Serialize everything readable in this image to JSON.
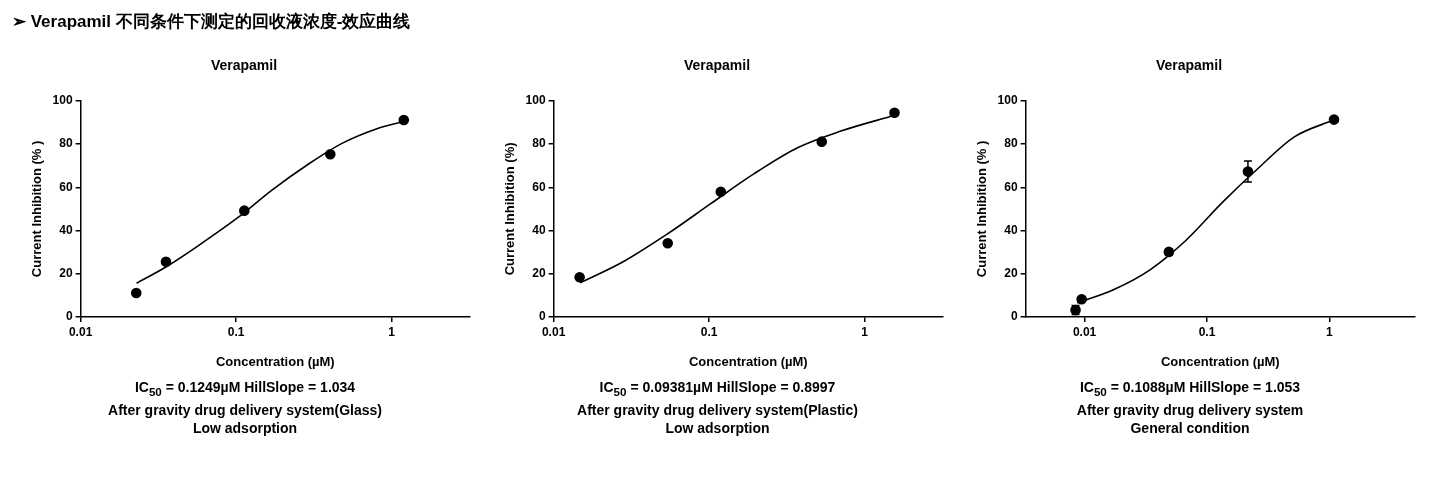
{
  "chart_data": [
    {
      "type": "other",
      "title": "➢ Verapamil 不同条件下测定的回收液浓度-效应曲线"
    },
    {
      "type": "scatter",
      "title": "Verapamil",
      "xlabel": "Concentration (µM)",
      "ylabel": "Current Inhibition (% )",
      "log": "x",
      "xlim": [
        0.01,
        3.2
      ],
      "xticks": [
        0.01,
        0.1,
        1
      ],
      "ylim": [
        0,
        100
      ],
      "yticks": [
        0,
        20,
        40,
        60,
        80,
        100
      ],
      "annotations": [
        "IC$_{50}$ = 0.1249µM HillSlope = 1.034",
        "After gravity drug delivery system(Glass)",
        "Low adsorption"
      ],
      "series": [
        {
          "type": "line",
          "color": "#000000",
          "marker": "none",
          "x": [
            0.0229,
            0.0365,
            0.061,
            0.102,
            0.171,
            0.285,
            0.477,
            0.798,
            1.2
          ],
          "values": [
            15.6,
            23.7,
            34.4,
            45.8,
            58.8,
            70.2,
            80.2,
            87.0,
            90.4
          ]
        },
        {
          "type": "scatter",
          "color": "#000000",
          "marker": "circle",
          "x": [
            0.0228,
            0.0354,
            0.113,
            0.404,
            1.2
          ],
          "values": [
            11.1,
            25.5,
            49.2,
            75.3,
            91.1
          ]
        }
      ]
    },
    {
      "type": "scatter",
      "title": "Verapamil",
      "xlabel": "Concentration (µM)",
      "ylabel": "Current Inhibition (%)",
      "log": "x",
      "xlim": [
        0.01,
        3.2
      ],
      "xticks": [
        0.01,
        0.1,
        1
      ],
      "ylim": [
        0,
        100
      ],
      "yticks": [
        0,
        20,
        40,
        60,
        80,
        100
      ],
      "annotations": [
        "IC$_{50}$ = 0.09381µM HillSlope = 0.8997",
        "After gravity drug delivery system(Plastic)",
        "Low adsorption"
      ],
      "series": [
        {
          "type": "line",
          "color": "#000000",
          "marker": "none",
          "x": [
            0.0148,
            0.0282,
            0.0537,
            0.102,
            0.195,
            0.371,
            0.705,
            1.56
          ],
          "values": [
            15.8,
            25.7,
            38.3,
            52.3,
            66.3,
            78.3,
            86.0,
            93.3
          ]
        },
        {
          "type": "scatter",
          "color": "#000000",
          "marker": "circle",
          "x": [
            0.0147,
            0.0542,
            0.119,
            0.531,
            1.56
          ],
          "values": [
            18.4,
            34.1,
            57.9,
            81.1,
            94.5
          ]
        }
      ]
    },
    {
      "type": "scatter",
      "title": "Verapamil",
      "xlabel": "Concentration (µM)",
      "ylabel": "Current Inhibition (% )",
      "log": "x",
      "xlim": [
        0.0033,
        5
      ],
      "xticks": [
        0.01,
        0.1,
        1
      ],
      "ylim": [
        0,
        100
      ],
      "yticks": [
        0,
        20,
        40,
        60,
        80,
        100
      ],
      "annotations": [
        "IC$_{50}$ = 0.1088µM HillSlope = 1.053",
        "After gravity drug delivery system",
        "General condition"
      ],
      "series": [
        {
          "type": "line",
          "color": "#000000",
          "marker": "none",
          "x": [
            0.00872,
            0.0172,
            0.034,
            0.0671,
            0.133,
            0.262,
            0.517,
            1.09
          ],
          "values": [
            6.5,
            12.6,
            21.7,
            35.4,
            52.9,
            68.8,
            83.3,
            91.2
          ]
        },
        {
          "type": "scatter",
          "color": "#000000",
          "marker": "circle",
          "x": [
            0.00844,
            0.00947,
            0.0488,
            0.216,
            1.09
          ],
          "values": [
            3.2,
            8.2,
            30.1,
            67.3,
            91.3
          ],
          "errors": [
            2.1,
            null,
            1.5,
            4.9,
            null
          ]
        }
      ]
    }
  ]
}
